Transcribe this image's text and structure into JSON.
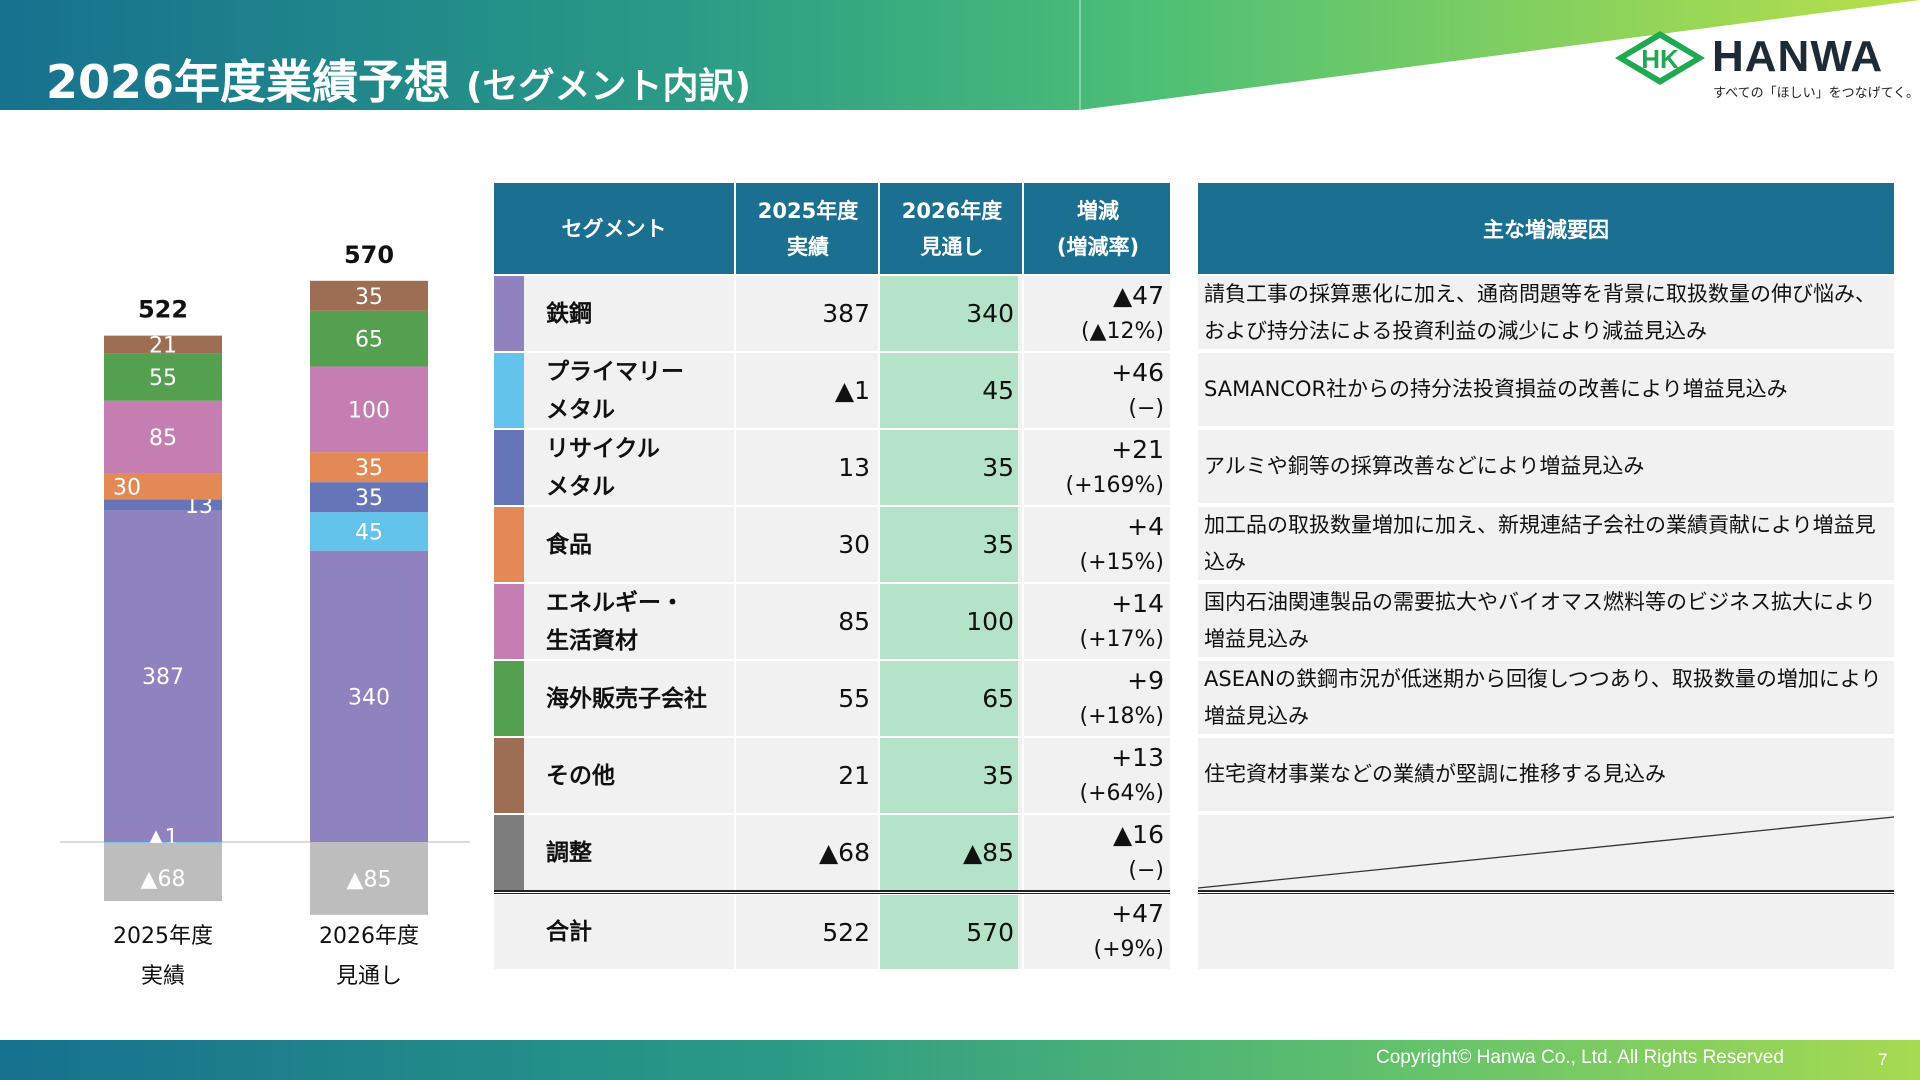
{
  "header": {
    "title": "2026年度業績予想",
    "subtitle": "(セグメント内訳)",
    "logo_mark": "HK",
    "logo_text": "HANWA",
    "logo_tagline": "すべての「ほしい」をつなげてく。"
  },
  "chart_data": {
    "type": "bar",
    "stacked": true,
    "categories": [
      "2025年度\n実績",
      "2026年度\n見通し"
    ],
    "category_lines": [
      [
        "2025年度",
        "実績"
      ],
      [
        "2026年度",
        "見通し"
      ]
    ],
    "totals": [
      "522",
      "570"
    ],
    "series": [
      {
        "key": "steel",
        "color": "#8f82bf",
        "values": [
          387,
          340
        ],
        "labels": [
          "387",
          "340"
        ]
      },
      {
        "key": "primary_metal",
        "color": "#63c3ea",
        "values": [
          -1,
          45
        ],
        "labels": [
          "▲1",
          "45"
        ]
      },
      {
        "key": "recycle_metal",
        "color": "#6575b7",
        "values": [
          13,
          35
        ],
        "labels": [
          "13",
          "35"
        ]
      },
      {
        "key": "food",
        "color": "#e28956",
        "values": [
          30,
          35
        ],
        "labels": [
          "30",
          "35"
        ]
      },
      {
        "key": "energy",
        "color": "#c47eb2",
        "values": [
          85,
          100
        ],
        "labels": [
          "85",
          "100"
        ]
      },
      {
        "key": "overseas",
        "color": "#54a050",
        "values": [
          55,
          65
        ],
        "labels": [
          "55",
          "65"
        ]
      },
      {
        "key": "other",
        "color": "#9d6e54",
        "values": [
          21,
          35
        ],
        "labels": [
          "21",
          "35"
        ]
      },
      {
        "key": "adjustment",
        "color": "#bdbdbd",
        "values": [
          -68,
          -85
        ],
        "labels": [
          "▲68",
          "▲85"
        ]
      }
    ]
  },
  "table": {
    "headers": {
      "segment": "セグメント",
      "fy2025_l1": "2025年度",
      "fy2025_l2": "実績",
      "fy2026_l1": "2026年度",
      "fy2026_l2": "見通し",
      "change_l1": "増減",
      "change_l2": "(増減率)"
    },
    "rows": [
      {
        "color": "#8f82bf",
        "name_l1": "鉄鋼",
        "name_l2": "",
        "v2025": "387",
        "v2026": "340",
        "change": "▲47",
        "rate": "(▲12%)"
      },
      {
        "color": "#63c3ea",
        "name_l1": "プライマリー",
        "name_l2": "メタル",
        "v2025": "▲1",
        "v2026": "45",
        "change": "+46",
        "rate": "(−)"
      },
      {
        "color": "#6575b7",
        "name_l1": "リサイクル",
        "name_l2": "メタル",
        "v2025": "13",
        "v2026": "35",
        "change": "+21",
        "rate": "(+169%)"
      },
      {
        "color": "#e28956",
        "name_l1": "食品",
        "name_l2": "",
        "v2025": "30",
        "v2026": "35",
        "change": "+4",
        "rate": "(+15%)"
      },
      {
        "color": "#c47eb2",
        "name_l1": "エネルギー・",
        "name_l2": "生活資材",
        "v2025": "85",
        "v2026": "100",
        "change": "+14",
        "rate": "(+17%)"
      },
      {
        "color": "#54a050",
        "name_l1": "海外販売子会社",
        "name_l2": "",
        "v2025": "55",
        "v2026": "65",
        "change": "+9",
        "rate": "(+18%)"
      },
      {
        "color": "#9d6e54",
        "name_l1": "その他",
        "name_l2": "",
        "v2025": "21",
        "v2026": "35",
        "change": "+13",
        "rate": "(+64%)"
      },
      {
        "color": "#7d7d7d",
        "name_l1": "調整",
        "name_l2": "",
        "v2025": "▲68",
        "v2026": "▲85",
        "change": "▲16",
        "rate": "(−)"
      }
    ],
    "total": {
      "name": "合計",
      "v2025": "522",
      "v2026": "570",
      "change": "+47",
      "rate": "(+9%)"
    }
  },
  "reasons": {
    "header": "主な増減要因",
    "rows": [
      "請負工事の採算悪化に加え、通商問題等を背景に取扱数量の伸び悩み、および持分法による投資利益の減少により減益見込み",
      "SAMANCOR社からの持分法投資損益の改善により増益見込み",
      "アルミや銅等の採算改善などにより増益見込み",
      "加工品の取扱数量増加に加え、新規連結子会社の業績貢献により増益見込み",
      "国内石油関連製品の需要拡大やバイオマス燃料等のビジネス拡大により増益見込み",
      "ASEANの鉄鋼市況が低迷期から回復しつつあり、取扱数量の増加により増益見込み",
      "住宅資材事業などの業績が堅調に推移する見込み"
    ]
  },
  "footer": {
    "copyright": "Copyright© Hanwa Co., Ltd. All Rights Reserved",
    "page": "7"
  }
}
